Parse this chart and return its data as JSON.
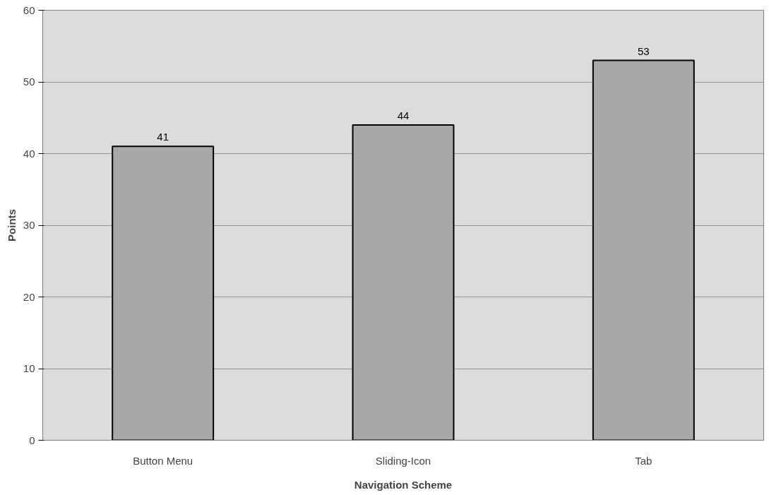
{
  "chart_data": {
    "type": "bar",
    "xlabel": "Navigation Scheme",
    "ylabel": "Points",
    "categories": [
      "Button Menu",
      "Sliding-Icon",
      "Tab"
    ],
    "values": [
      41,
      44,
      53
    ],
    "color": "#a8a8a8",
    "ylim": [
      0,
      60
    ],
    "yticks": [
      0,
      10,
      20,
      30,
      40,
      50,
      60
    ],
    "grid": "y",
    "data_labels": true
  }
}
